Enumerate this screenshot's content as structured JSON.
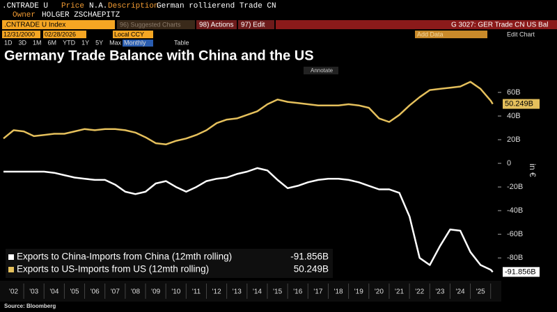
{
  "header": {
    "ticker": ".CNTRADE U",
    "price_label": "Price",
    "price": "N.A.",
    "desc_label": "Description",
    "desc": "German rollierend Trade CN",
    "owner_label": "Owner",
    "owner": "HOLGER ZSCHAEPITZ"
  },
  "toolbar": {
    "security": ".CNTRADE U Index",
    "suggested": "96) Suggested Charts",
    "actions": "98) Actions",
    "edit": "97) Edit",
    "chart_id": "G 3027: GER Trade CN US Bal",
    "start_date": "12/31/2000",
    "end_date": "02/28/2026",
    "currency": "Local CCY",
    "add_data": "Add Data",
    "edit_chart": "Edit Chart",
    "periods": [
      "1D",
      "3D",
      "1M",
      "6M",
      "YTD",
      "1Y",
      "5Y",
      "Max"
    ],
    "frequency": "Monthly",
    "table": "Table",
    "annotate": "Annotate"
  },
  "chart_data": {
    "type": "line",
    "title": "Germany Trade Balance with China and the US",
    "y_label": "in €",
    "source": "Source: Bloomberg",
    "x": [
      2002,
      2002.5,
      2003,
      2003.5,
      2004,
      2004.5,
      2005,
      2005.5,
      2006,
      2006.5,
      2007,
      2007.5,
      2008,
      2008.5,
      2009,
      2009.5,
      2010,
      2010.5,
      2011,
      2011.5,
      2012,
      2012.5,
      2013,
      2013.5,
      2014,
      2014.5,
      2015,
      2015.5,
      2016,
      2016.5,
      2017,
      2017.5,
      2018,
      2018.5,
      2019,
      2019.5,
      2020,
      2020.5,
      2021,
      2021.5,
      2022,
      2022.5,
      2023,
      2023.5,
      2024,
      2024.5,
      2025,
      2025.5,
      2026,
      2026.1
    ],
    "series": [
      {
        "name": "Exports to China-Imports from China (12mth rolling)",
        "color": "#ffffff",
        "last_label": "-91.856B",
        "values": [
          -7,
          -7,
          -7,
          -7,
          -7,
          -8,
          -10,
          -12,
          -13,
          -14,
          -14,
          -18,
          -24,
          -26,
          -24,
          -17,
          -15,
          -20,
          -24,
          -20,
          -15,
          -13,
          -12,
          -9,
          -7,
          -4,
          -6,
          -14,
          -21,
          -19,
          -16,
          -14,
          -13,
          -13,
          -14,
          -16,
          -19,
          -22,
          -22,
          -25,
          -45,
          -80,
          -86,
          -70,
          -56,
          -57,
          -75,
          -86,
          -90,
          -91.856
        ]
      },
      {
        "name": "Exports to US-Imports from US (12mth rolling)",
        "color": "#e5c05c",
        "last_label": "50.249B",
        "values": [
          21,
          28,
          27,
          23,
          24,
          25,
          25,
          27,
          29,
          28,
          29,
          29,
          28,
          26,
          22,
          17,
          16,
          19,
          21,
          24,
          28,
          34,
          37,
          38,
          41,
          44,
          50,
          54,
          52,
          51,
          50,
          49,
          49,
          49,
          50,
          49,
          47,
          38,
          35,
          41,
          49,
          56,
          62,
          63,
          64,
          65,
          69,
          63,
          53,
          50.249
        ]
      }
    ],
    "xlim": [
      2002,
      2026.35
    ],
    "ylim": [
      -94,
      73.5
    ],
    "xticks": [
      {
        "value": 2002.5,
        "label": "'02"
      },
      {
        "value": 2003.5,
        "label": "'03"
      },
      {
        "value": 2004.5,
        "label": "'04"
      },
      {
        "value": 2005.5,
        "label": "'05"
      },
      {
        "value": 2006.5,
        "label": "'06"
      },
      {
        "value": 2007.5,
        "label": "'07"
      },
      {
        "value": 2008.5,
        "label": "'08"
      },
      {
        "value": 2009.5,
        "label": "'09"
      },
      {
        "value": 2010.5,
        "label": "'10"
      },
      {
        "value": 2011.5,
        "label": "'11"
      },
      {
        "value": 2012.5,
        "label": "'12"
      },
      {
        "value": 2013.5,
        "label": "'13"
      },
      {
        "value": 2014.5,
        "label": "'14"
      },
      {
        "value": 2015.5,
        "label": "'15"
      },
      {
        "value": 2016.5,
        "label": "'16"
      },
      {
        "value": 2017.5,
        "label": "'17"
      },
      {
        "value": 2018.5,
        "label": "'18"
      },
      {
        "value": 2019.5,
        "label": "'19"
      },
      {
        "value": 2020.5,
        "label": "'20"
      },
      {
        "value": 2021.5,
        "label": "'21"
      },
      {
        "value": 2022.5,
        "label": "'22"
      },
      {
        "value": 2023.5,
        "label": "'23"
      },
      {
        "value": 2024.5,
        "label": "'24"
      },
      {
        "value": 2025.5,
        "label": "'25"
      }
    ],
    "yticks": [
      {
        "value": 60,
        "label": "60B"
      },
      {
        "value": 40,
        "label": "40B"
      },
      {
        "value": 20,
        "label": "20B"
      },
      0,
      {
        "value": -20,
        "label": "-20B"
      },
      {
        "value": -40,
        "label": "-40B"
      },
      {
        "value": -60,
        "label": "-60B"
      },
      {
        "value": -80,
        "label": "-80B"
      }
    ],
    "grid": false,
    "legend": "lower left"
  }
}
